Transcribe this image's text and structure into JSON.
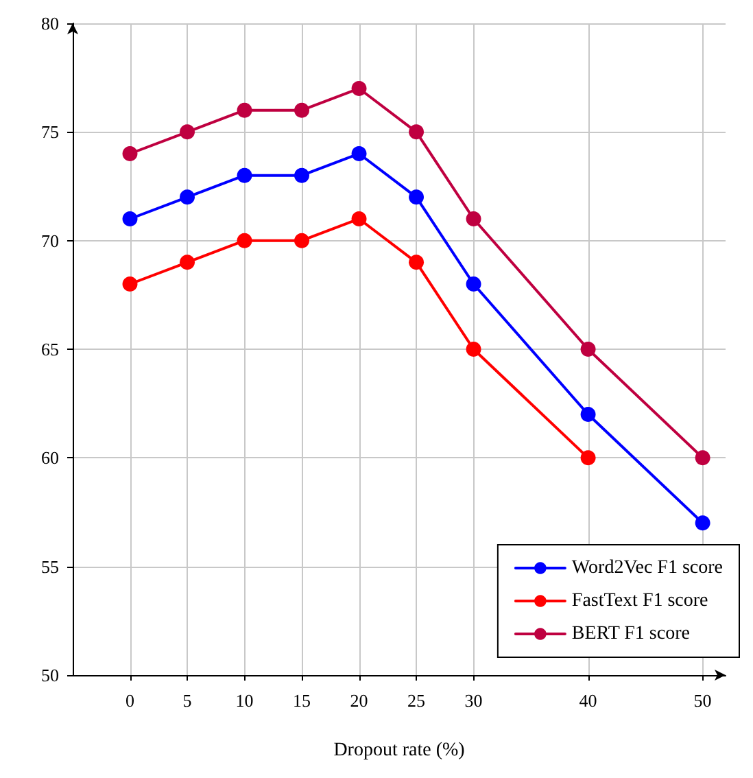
{
  "chart_data": {
    "type": "line",
    "xlabel": "Dropout rate (%)",
    "x": [
      0,
      5,
      10,
      15,
      20,
      25,
      30,
      40,
      50
    ],
    "series": [
      {
        "name": "Word2Vec F1 score",
        "color": "#0000ff",
        "values": [
          71,
          72,
          73,
          73,
          74,
          72,
          68,
          62,
          57
        ]
      },
      {
        "name": "FastText F1 score",
        "color": "#ff0000",
        "values": [
          68,
          69,
          70,
          70,
          71,
          69,
          65,
          60,
          null
        ]
      },
      {
        "name": "BERT F1 score",
        "color": "#bf0040",
        "values": [
          74,
          75,
          76,
          76,
          77,
          75,
          71,
          65,
          60
        ]
      }
    ],
    "xlim": [
      -5,
      52
    ],
    "xticks": [
      0,
      5,
      10,
      15,
      20,
      25,
      30,
      40,
      50
    ],
    "ylim": [
      50,
      80
    ],
    "yticks": [
      50,
      55,
      60,
      65,
      70,
      75,
      80
    ],
    "grid": true,
    "legend": "bottom right",
    "marker": "circle",
    "line_style": "solid"
  }
}
